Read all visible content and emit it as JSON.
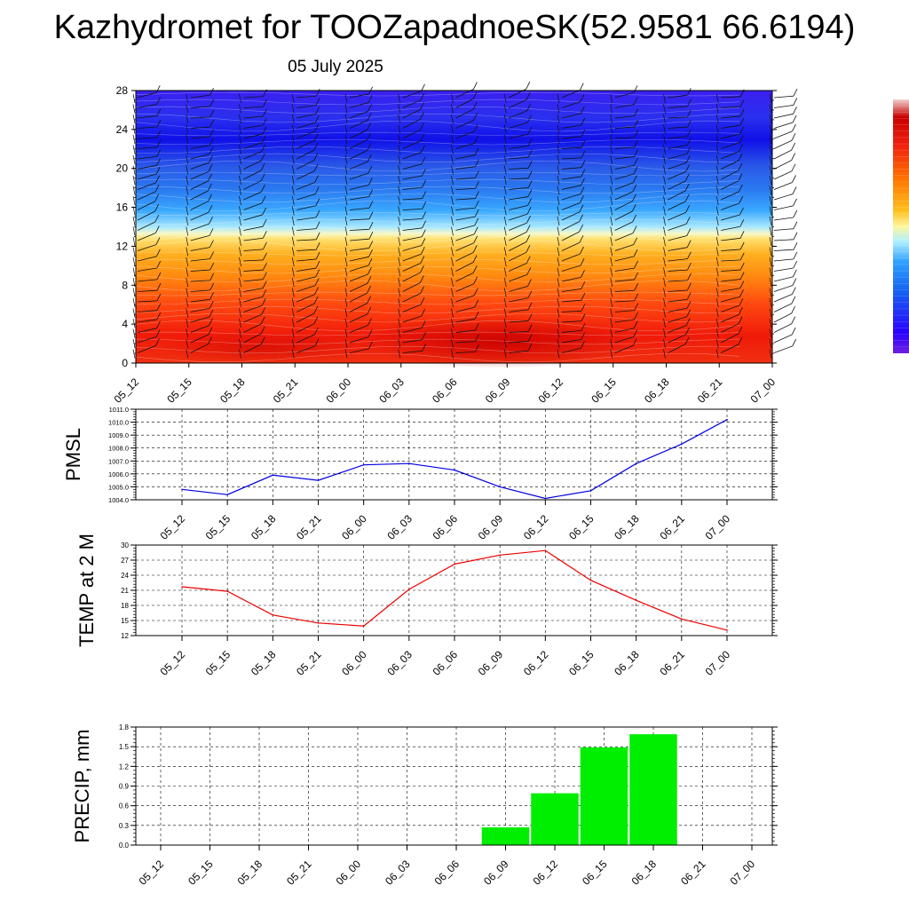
{
  "header": {
    "title": "Kazhydromet for TOOZapadnoeSK(52.9581 66.6194)",
    "date": "05 July 2025"
  },
  "colors": {
    "pmsl_line": "#0000dd",
    "temp_line": "#ee0000",
    "precip_bar": "#00ee00",
    "colorbar": [
      "#7020e0",
      "#2a00ff",
      "#1560f0",
      "#2fa0ff",
      "#aef0ff",
      "#fff6a0",
      "#ffc020",
      "#ff7800",
      "#f02010",
      "#c80000",
      "#f0d0d0"
    ]
  },
  "chart_data": [
    {
      "type": "heatmap",
      "title": "",
      "x": [
        "05_12",
        "05_15",
        "05_18",
        "05_21",
        "06_00",
        "06_03",
        "06_06",
        "06_09",
        "06_12",
        "06_15",
        "06_18",
        "06_21",
        "07_00"
      ],
      "yticks": [
        0,
        4,
        8,
        12,
        16,
        20,
        24,
        28
      ],
      "ylim": [
        0,
        28
      ],
      "description_bands": [
        "0-4: hot red",
        "4-8: orange-red",
        "8-13: orange/yellow",
        "13-14: pale yellow/white",
        "14-19: light blue",
        "19-24: mid blue",
        "24-28: deep blue"
      ]
    },
    {
      "type": "line",
      "ylabel": "PMSL",
      "x": [
        "05_12",
        "05_15",
        "05_18",
        "05_21",
        "06_00",
        "06_03",
        "06_06",
        "06_09",
        "06_12",
        "06_15",
        "06_18",
        "06_21",
        "07_00"
      ],
      "values": [
        1004.8,
        1004.4,
        1005.9,
        1005.5,
        1006.7,
        1006.8,
        1006.3,
        1005.0,
        1004.1,
        1004.7,
        1006.8,
        1008.3,
        1010.2
      ],
      "yticks": [
        "1004.0",
        "1005.0",
        "1006.0",
        "1007.0",
        "1008.0",
        "1009.0",
        "1010.0",
        "1011.0"
      ],
      "ylim": [
        1004.0,
        1011.0
      ],
      "grid": true
    },
    {
      "type": "line",
      "ylabel": "TEMP at 2 M",
      "x": [
        "05_12",
        "05_15",
        "05_18",
        "05_21",
        "06_00",
        "06_03",
        "06_06",
        "06_09",
        "06_12",
        "06_15",
        "06_18",
        "06_21",
        "07_00"
      ],
      "values": [
        21.7,
        20.8,
        16.1,
        14.5,
        13.9,
        21.2,
        26.2,
        28.0,
        28.9,
        23.0,
        19.0,
        15.3,
        13.1
      ],
      "yticks": [
        "12",
        "15",
        "18",
        "21",
        "24",
        "27",
        "30"
      ],
      "ylim": [
        12,
        30
      ],
      "grid": true
    },
    {
      "type": "bar",
      "ylabel": "PRECIP, mm",
      "categories": [
        "05_12",
        "05_15",
        "05_18",
        "05_21",
        "06_00",
        "06_03",
        "06_06",
        "06_09",
        "06_12",
        "06_15",
        "06_18",
        "06_21",
        "07_00"
      ],
      "values": [
        0,
        0,
        0,
        0,
        0,
        0,
        0,
        0.27,
        0.79,
        1.49,
        1.69,
        0,
        0
      ],
      "yticks": [
        "0.0",
        "0.3",
        "0.6",
        "0.9",
        "1.2",
        "1.5",
        "1.8"
      ],
      "ylim": [
        0,
        1.8
      ],
      "grid": true
    }
  ]
}
